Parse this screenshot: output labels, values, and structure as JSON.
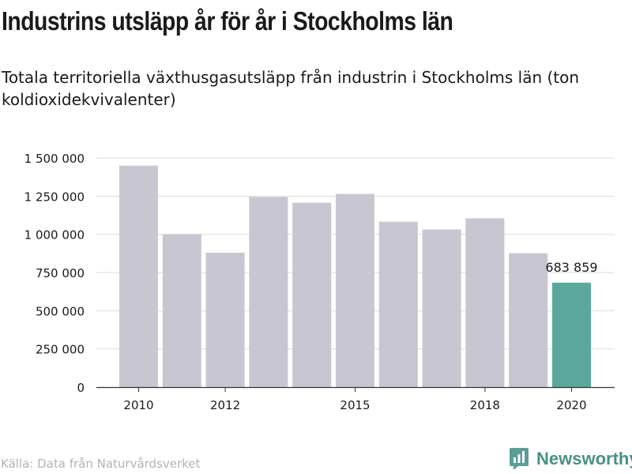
{
  "title": "Industrins utsläpp år för år i Stockholms län",
  "subtitle": "Totala territoriella växthusgasutsläpp från industrin i Stockholms län (ton koldioxidekvivalenter)",
  "source": "Källa: Data från Naturvårdsverket",
  "brand": {
    "name": "Newsworthy",
    "icon": "bar-chart-badge-icon",
    "color": "#5a9e96"
  },
  "chart_data": {
    "type": "bar",
    "x": [
      2010,
      2011,
      2012,
      2013,
      2014,
      2015,
      2016,
      2017,
      2018,
      2019,
      2020
    ],
    "values": [
      1450000,
      1000000,
      880000,
      1245000,
      1207000,
      1265000,
      1083000,
      1032000,
      1105000,
      877000,
      683859
    ],
    "x_tick_labels": [
      "2010",
      "2012",
      "2015",
      "2018",
      "2020"
    ],
    "y_ticks": [
      0,
      250000,
      500000,
      750000,
      1000000,
      1250000,
      1500000
    ],
    "y_tick_labels": [
      "0",
      "250 000",
      "500 000",
      "750 000",
      "1 000 000",
      "1 250 000",
      "1 500 000"
    ],
    "ylim": [
      0,
      1500000
    ],
    "grid": true,
    "colors": {
      "default": "#c8c6d0",
      "highlight": "#5aa89b"
    },
    "highlight_index": 10,
    "annotations": [
      {
        "index": 10,
        "text": "683 859"
      }
    ]
  }
}
